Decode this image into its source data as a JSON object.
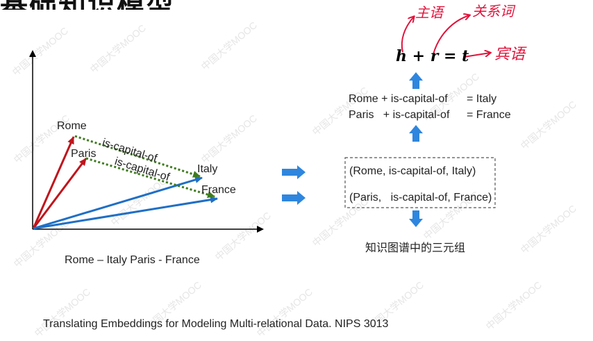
{
  "slide": {
    "title_partial": "基础知识模型",
    "formula": "h + r = t",
    "handwriting": {
      "head": "主语",
      "relation": "关系词",
      "tail": "宾语"
    },
    "equations": {
      "eq1_left": "Rome + is-capital-of",
      "eq1_right": "=  Italy",
      "eq2_left": "Paris   + is-capital-of",
      "eq2_right": "=  France"
    },
    "triples": {
      "t1": "(Rome, is-capital-of, Italy)",
      "t2": "(Paris,   is-capital-of, France)"
    },
    "triples_caption": "知识图谱中的三元组",
    "plot_caption": "Rome – Italy  Paris - France",
    "reference": "Translating Embeddings for Modeling Multi-relational Data. NIPS 3013",
    "watermark": "中国大学MOOC"
  },
  "diagram": {
    "points": {
      "rome": "Rome",
      "paris": "Paris",
      "italy": "Italy",
      "france": "France"
    },
    "edge_label": "is-capital-of",
    "colors": {
      "origin_vector": "#c0141c",
      "target_vector": "#1f6fc5",
      "relation": "#3e7b1e",
      "arrow_fill": "#2e86de",
      "dashed_box": "#555555",
      "handwriting": "#e0143c"
    }
  }
}
